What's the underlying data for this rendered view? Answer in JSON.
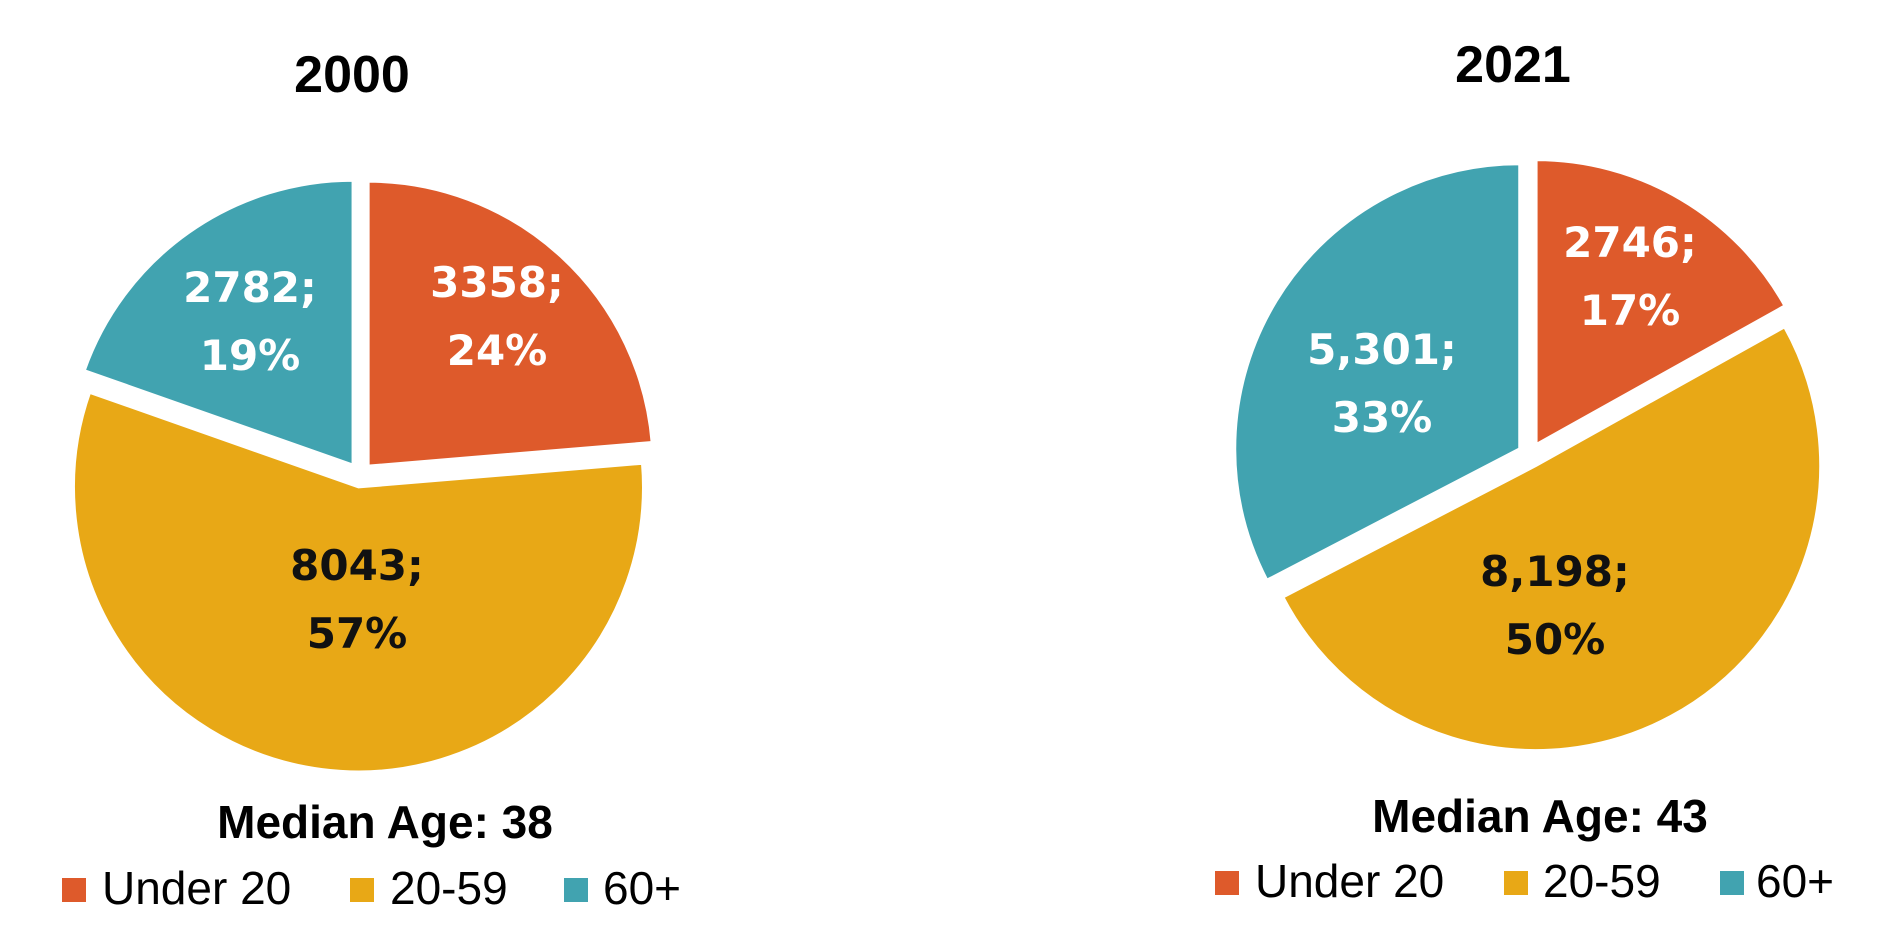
{
  "chart_data": [
    {
      "type": "pie",
      "title": "2000",
      "caption": "Median Age: 38",
      "slices": [
        {
          "name": "Under 20",
          "value_label": "3358;",
          "pct_label": "24%",
          "value": 3358,
          "percent": 24,
          "color": "#DE5A2B",
          "label_color": "#ffffff"
        },
        {
          "name": "20-59",
          "value_label": "8043;",
          "pct_label": "57%",
          "value": 8043,
          "percent": 57,
          "color": "#E8A816",
          "label_color": "#111111"
        },
        {
          "name": "60+",
          "value_label": "2782;",
          "pct_label": "19%",
          "value": 2782,
          "percent": 19,
          "color": "#41A3B0",
          "label_color": "#ffffff"
        }
      ],
      "legend": [
        "Under 20",
        "20-59",
        "60+"
      ]
    },
    {
      "type": "pie",
      "title": "2021",
      "caption": "Median Age: 43",
      "slices": [
        {
          "name": "Under 20",
          "value_label": "2746;",
          "pct_label": "17%",
          "value": 2746,
          "percent": 17,
          "color": "#DE5A2B",
          "label_color": "#ffffff"
        },
        {
          "name": "20-59",
          "value_label": "8,198;",
          "pct_label": "50%",
          "value": 8198,
          "percent": 50,
          "color": "#E8A816",
          "label_color": "#111111"
        },
        {
          "name": "60+",
          "value_label": "5,301;",
          "pct_label": "33%",
          "value": 5301,
          "percent": 33,
          "color": "#41A3B0",
          "label_color": "#ffffff"
        }
      ],
      "legend": [
        "Under 20",
        "20-59",
        "60+"
      ]
    }
  ]
}
